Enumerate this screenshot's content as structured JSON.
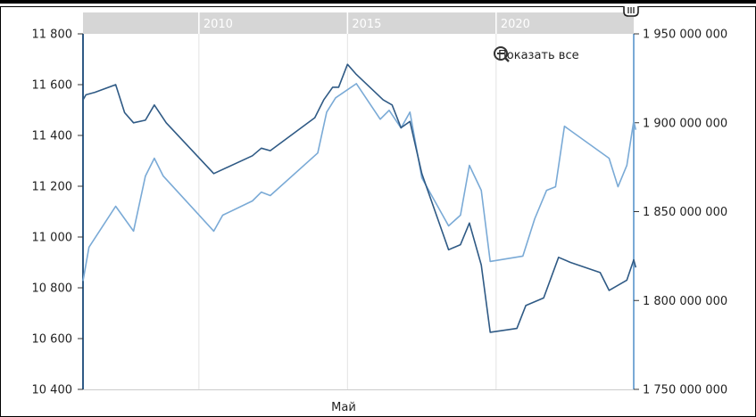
{
  "reset_zoom": {
    "label": "Показать все",
    "icon": "zoom-out-icon"
  },
  "navigator": {
    "handle_icon": "grip-handle-icon",
    "band_color": "#d6d6d6"
  },
  "colors": {
    "series_left": "#2f5a85",
    "series_right": "#7aaad6",
    "axis_left": "#2f5a85",
    "axis_right": "#7aaad6",
    "grid": "#e3e3e3"
  },
  "chart_data": {
    "type": "line",
    "xlabel": "Май",
    "xlim": [
      2006.1,
      2024.63
    ],
    "x_ticks": [
      2010,
      2015,
      2020
    ],
    "x_tick_labels": [
      "2010",
      "2015",
      "2020"
    ],
    "grid": true,
    "y_left": {
      "range": [
        10400,
        11800
      ],
      "ticks": [
        10400,
        10600,
        10800,
        11000,
        11200,
        11400,
        11600,
        11800
      ],
      "tick_labels": [
        "10 400",
        "10 600",
        "10 800",
        "11 000",
        "11 200",
        "11 400",
        "11 600",
        "11 800"
      ]
    },
    "y_right": {
      "range": [
        1750000000,
        1950000000
      ],
      "ticks": [
        1750000000,
        1800000000,
        1850000000,
        1900000000,
        1950000000
      ],
      "tick_labels": [
        "1 750 000 000",
        "1 800 000 000",
        "1 850 000 000",
        "1 900 000 000",
        "1 950 000 000"
      ]
    },
    "series": [
      {
        "axis": "left",
        "x": [
          2006.1,
          2006.2,
          2006.5,
          2007.2,
          2007.5,
          2007.8,
          2008.2,
          2008.5,
          2008.9,
          2010.5,
          2011.8,
          2012.1,
          2012.4,
          2013.9,
          2014.2,
          2014.5,
          2014.7,
          2015.0,
          2015.3,
          2016.2,
          2016.5,
          2016.8,
          2017.1,
          2017.5,
          2018.4,
          2018.8,
          2019.1,
          2019.5,
          2019.8,
          2020.7,
          2021.0,
          2021.6,
          2022.1,
          2022.5,
          2023.5,
          2023.8,
          2024.4,
          2024.63,
          2024.7
        ],
        "y": [
          11540,
          11560,
          11570,
          11600,
          11490,
          11450,
          11460,
          11520,
          11450,
          11250,
          11320,
          11350,
          11340,
          11470,
          11540,
          11590,
          11590,
          11680,
          11640,
          11540,
          11520,
          11430,
          11455,
          11250,
          10950,
          10970,
          11055,
          10890,
          10625,
          10640,
          10730,
          10760,
          10920,
          10900,
          10860,
          10790,
          10830,
          10910,
          10880
        ]
      },
      {
        "axis": "right",
        "x": [
          2006.1,
          2006.3,
          2007.2,
          2007.8,
          2008.2,
          2008.5,
          2008.8,
          2010.5,
          2010.8,
          2011.8,
          2012.1,
          2012.4,
          2014.0,
          2014.3,
          2014.6,
          2015.3,
          2016.1,
          2016.4,
          2016.8,
          2017.1,
          2017.5,
          2018.4,
          2018.8,
          2019.1,
          2019.5,
          2019.8,
          2020.9,
          2021.3,
          2021.7,
          2022.0,
          2022.3,
          2023.8,
          2024.1,
          2024.4,
          2024.63,
          2024.7
        ],
        "y": [
          1811000000,
          1830000000,
          1853000000,
          1839000000,
          1870000000,
          1880000000,
          1870000000,
          1839000000,
          1848000000,
          1856000000,
          1861000000,
          1859000000,
          1883000000,
          1906000000,
          1914000000,
          1922000000,
          1902000000,
          1907000000,
          1897000000,
          1906000000,
          1869000000,
          1842000000,
          1848000000,
          1876000000,
          1862000000,
          1822000000,
          1825000000,
          1846000000,
          1862000000,
          1864000000,
          1898000000,
          1880000000,
          1864000000,
          1876000000,
          1901000000,
          1896000000
        ]
      }
    ]
  }
}
